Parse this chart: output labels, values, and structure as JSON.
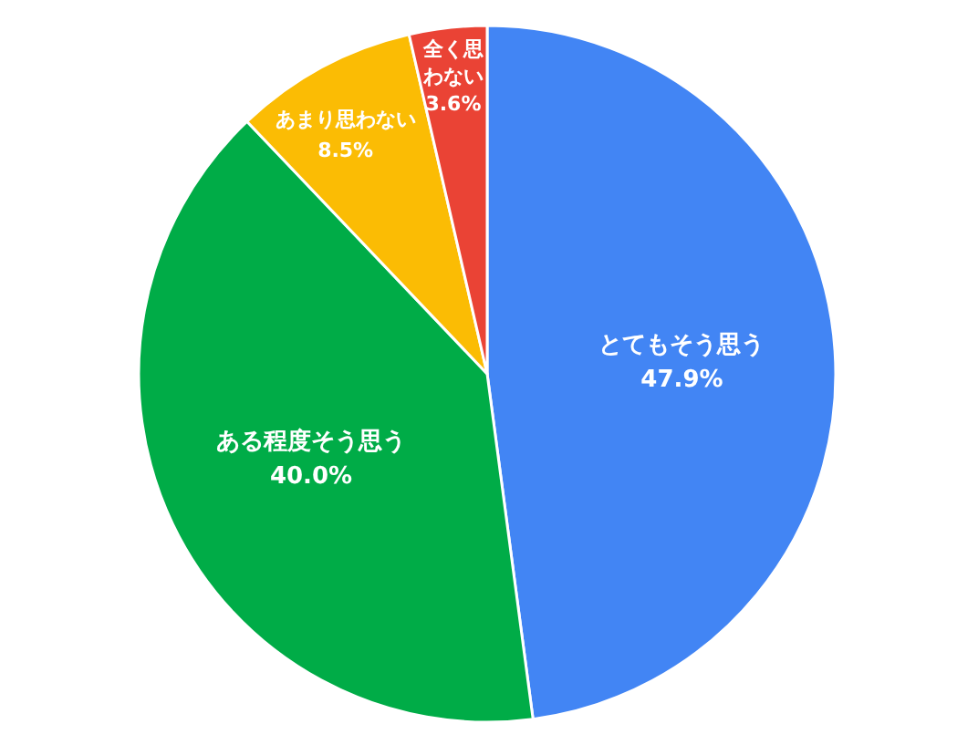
{
  "chart_data": {
    "type": "pie",
    "categories": [
      "とてもそう思う",
      "ある程度そう思う",
      "あまり思わない",
      "全く思わない"
    ],
    "values": [
      47.9,
      40.0,
      8.5,
      3.6
    ],
    "colors": [
      "#4285f4",
      "#00ac47",
      "#fbbc04",
      "#ea4335"
    ],
    "value_labels": [
      "47.9%",
      "40.0%",
      "8.5%",
      "3.6%"
    ]
  }
}
